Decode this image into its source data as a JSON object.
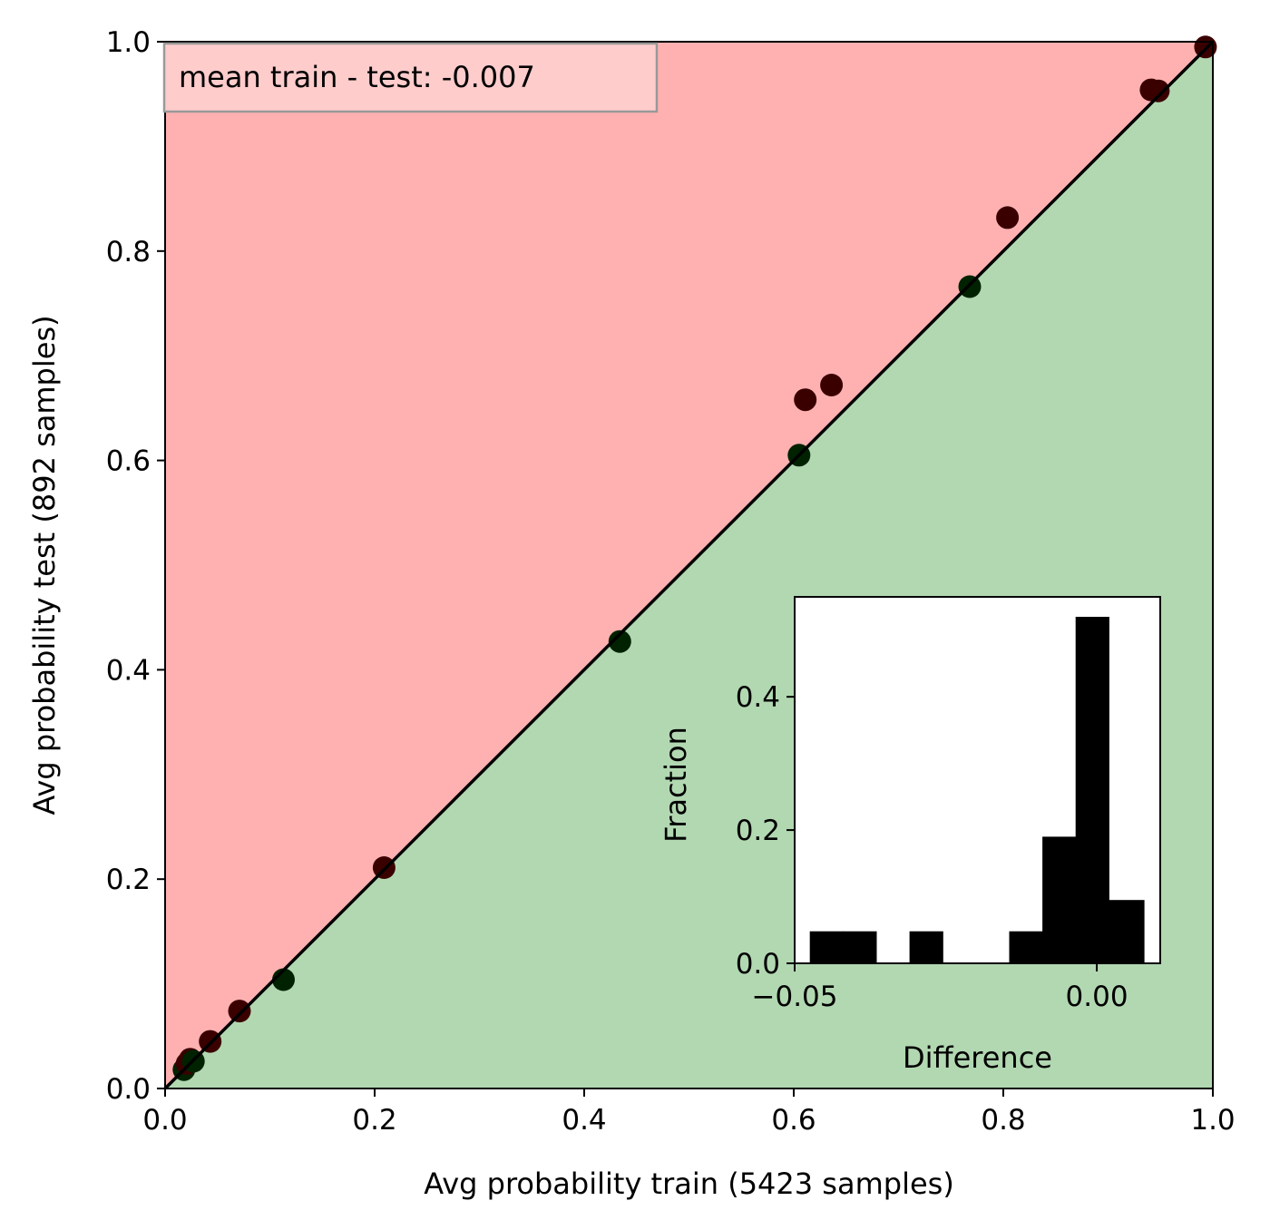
{
  "chart_data": [
    {
      "type": "scatter",
      "title": "",
      "xlabel": "Avg probability train (5423 samples)",
      "ylabel": "Avg probability test (892 samples)",
      "xlim": [
        0,
        1
      ],
      "ylim": [
        0,
        1
      ],
      "xticks": [
        "0.0",
        "0.2",
        "0.4",
        "0.6",
        "0.8",
        "1.0"
      ],
      "yticks": [
        "0.0",
        "0.2",
        "0.4",
        "0.6",
        "0.8",
        "1.0"
      ],
      "grid": false,
      "legend": "none",
      "annotation": "mean train - test: -0.007",
      "background_regions": {
        "above_diagonal": "#ffb1b1",
        "below_diagonal": "#b2d8b2"
      },
      "diagonal_line": {
        "from": [
          0,
          0
        ],
        "to": [
          1,
          1
        ],
        "color": "#000000"
      },
      "points": [
        {
          "x": 0.018,
          "y": 0.018
        },
        {
          "x": 0.021,
          "y": 0.024
        },
        {
          "x": 0.024,
          "y": 0.028
        },
        {
          "x": 0.027,
          "y": 0.026
        },
        {
          "x": 0.043,
          "y": 0.045
        },
        {
          "x": 0.071,
          "y": 0.074
        },
        {
          "x": 0.113,
          "y": 0.104
        },
        {
          "x": 0.209,
          "y": 0.211
        },
        {
          "x": 0.434,
          "y": 0.427
        },
        {
          "x": 0.605,
          "y": 0.605
        },
        {
          "x": 0.611,
          "y": 0.658
        },
        {
          "x": 0.636,
          "y": 0.672
        },
        {
          "x": 0.768,
          "y": 0.766
        },
        {
          "x": 0.804,
          "y": 0.832
        },
        {
          "x": 0.941,
          "y": 0.954
        },
        {
          "x": 0.948,
          "y": 0.953
        },
        {
          "x": 0.993,
          "y": 0.995
        }
      ],
      "point_colors": {
        "above_diagonal": "#3a0000",
        "below_diagonal": "#002200"
      }
    },
    {
      "type": "bar",
      "title": "",
      "xlabel": "Difference",
      "ylabel": "Fraction",
      "xlim": [
        -0.05,
        0.0105
      ],
      "ylim": [
        0,
        0.55
      ],
      "xticks": [
        {
          "value": -0.05,
          "label": "−0.05"
        },
        {
          "value": 0.0,
          "label": "0.00"
        }
      ],
      "yticks": [
        {
          "value": 0.0,
          "label": "0.0"
        },
        {
          "value": 0.2,
          "label": "0.2"
        },
        {
          "value": 0.4,
          "label": "0.4"
        }
      ],
      "grid": false,
      "legend": "none",
      "bar_color": "#000000",
      "bins": [
        {
          "x0": -0.0475,
          "x1": -0.042,
          "value": 0.048
        },
        {
          "x0": -0.042,
          "x1": -0.0365,
          "value": 0.048
        },
        {
          "x0": -0.0365,
          "x1": -0.031,
          "value": 0.0
        },
        {
          "x0": -0.031,
          "x1": -0.0255,
          "value": 0.048
        },
        {
          "x0": -0.0255,
          "x1": -0.02,
          "value": 0.0
        },
        {
          "x0": -0.02,
          "x1": -0.0145,
          "value": 0.0
        },
        {
          "x0": -0.0145,
          "x1": -0.009,
          "value": 0.048
        },
        {
          "x0": -0.009,
          "x1": -0.0035,
          "value": 0.19
        },
        {
          "x0": -0.0035,
          "x1": 0.002,
          "value": 0.52
        },
        {
          "x0": 0.002,
          "x1": 0.0078,
          "value": 0.095
        }
      ]
    }
  ]
}
